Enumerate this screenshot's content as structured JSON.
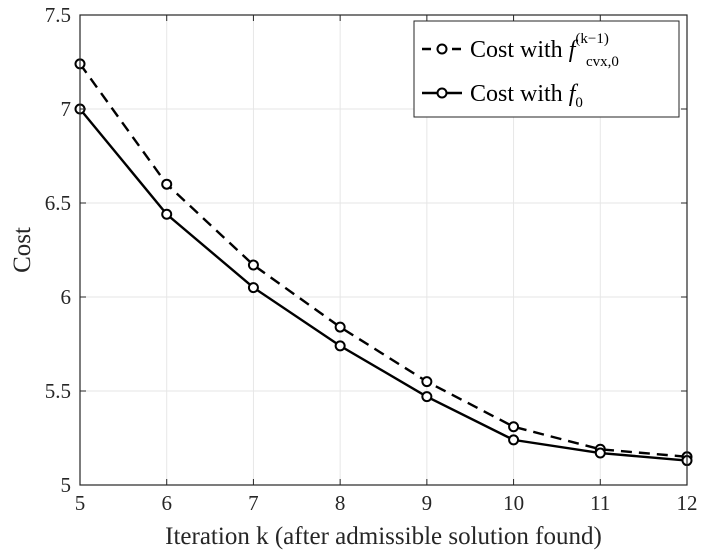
{
  "chart_data": {
    "type": "line",
    "xlabel": "Iteration k (after admissible solution found)",
    "ylabel": "Cost",
    "xlim": [
      5,
      12
    ],
    "ylim": [
      5,
      7.5
    ],
    "x": [
      5,
      6,
      7,
      8,
      9,
      10,
      11,
      12
    ],
    "xticks": [
      "5",
      "6",
      "7",
      "8",
      "9",
      "10",
      "11",
      "12"
    ],
    "yticks": [
      "5",
      "5.5",
      "6",
      "6.5",
      "7",
      "7.5"
    ],
    "grid": true,
    "legend_position": "top-right",
    "series": [
      {
        "name": "Cost with f_cvx,0^(k-1)",
        "label_main": "Cost with ",
        "label_base": "f",
        "label_sub": "cvx,0",
        "label_sup": "(k−1)",
        "style": "dashed",
        "marker": "open-circle",
        "color": "#000000",
        "values": [
          7.24,
          6.6,
          6.17,
          5.84,
          5.55,
          5.31,
          5.19,
          5.15
        ]
      },
      {
        "name": "Cost with f_0",
        "label_main": "Cost with ",
        "label_base": "f",
        "label_sub": "0",
        "label_sup": "",
        "style": "solid",
        "marker": "open-circle",
        "color": "#000000",
        "values": [
          7.0,
          6.44,
          6.05,
          5.74,
          5.47,
          5.24,
          5.17,
          5.13
        ]
      }
    ]
  }
}
